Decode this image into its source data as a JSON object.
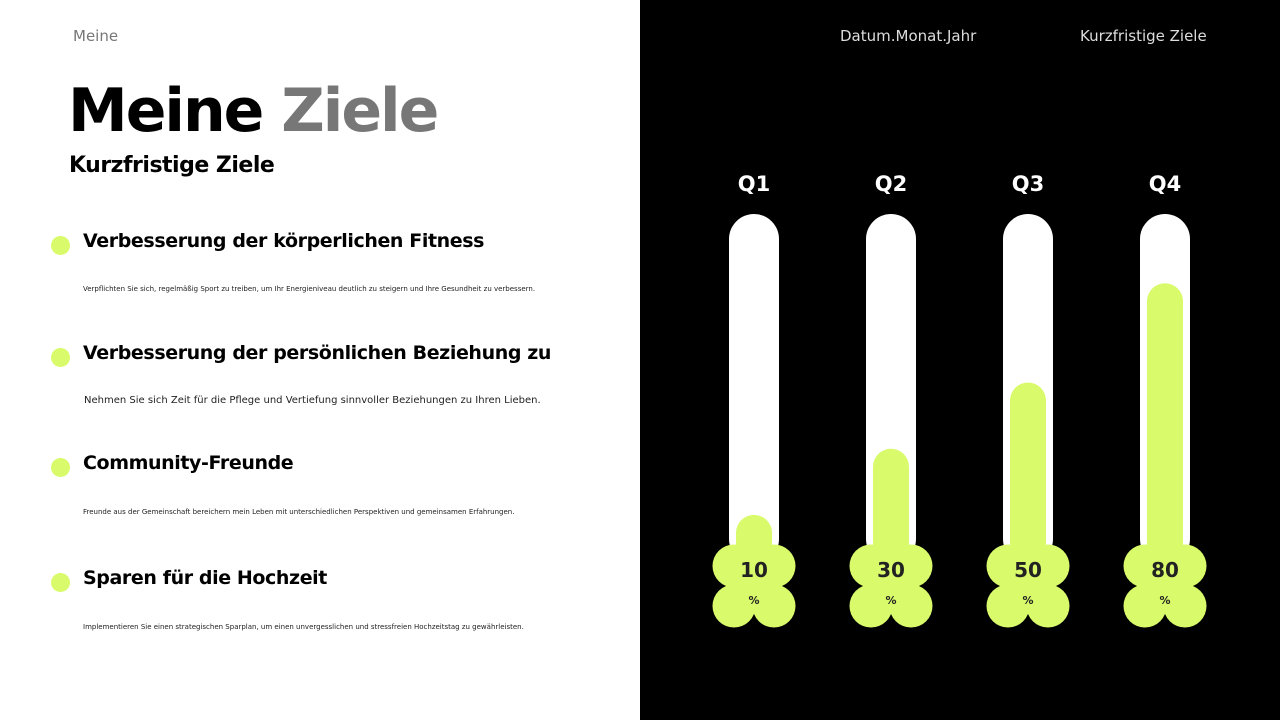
{
  "header": {
    "brand": "Meine",
    "title_main": "Meine",
    "title_highlight": "Ziele",
    "subtitle": "Kurzfristige Ziele",
    "date": "Datum.Monat.Jahr",
    "section": "Kurzfristige Ziele"
  },
  "items": [
    {
      "title": "Verbesserung der körperlichen Fitness",
      "desc": "Verpflichten Sie sich, regelmäßig Sport zu treiben, um Ihr Energieniveau deutlich zu steigern und Ihre Gesundheit zu verbessern."
    },
    {
      "title": "Verbesserung der persönlichen Beziehung zu",
      "desc": "Nehmen Sie sich Zeit für die Pflege und Vertiefung sinnvoller Beziehungen zu Ihren Lieben."
    },
    {
      "title": "Community-Freunde",
      "desc": "Freunde aus der Gemeinschaft bereichern mein Leben mit unterschiedlichen Perspektiven und gemeinsamen Erfahrungen."
    },
    {
      "title": "Sparen für die Hochzeit",
      "desc": "Implementieren Sie einen strategischen Sparplan, um einen unvergesslichen und stressfreien Hochzeitstag zu gewährleisten."
    }
  ],
  "colors": {
    "accent": "#d9fb6b",
    "tube": "#ffffff",
    "background": "#000000"
  },
  "chart_data": {
    "type": "bar",
    "categories": [
      "Q1",
      "Q2",
      "Q3",
      "Q4"
    ],
    "values": [
      10,
      30,
      50,
      80
    ],
    "unit": "%",
    "ylim": [
      0,
      100
    ]
  }
}
